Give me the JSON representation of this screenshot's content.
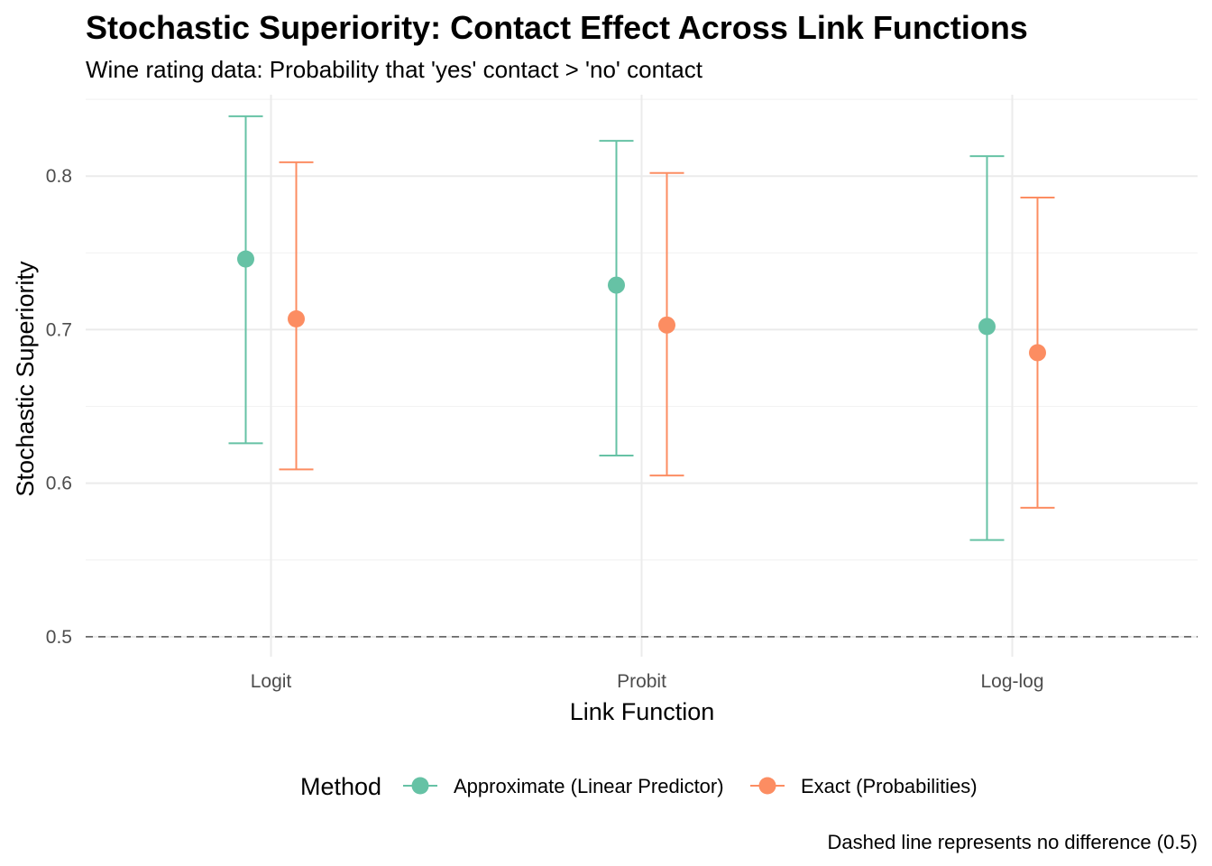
{
  "chart_data": {
    "type": "errorbar",
    "title": "Stochastic Superiority: Contact Effect Across Link Functions",
    "subtitle": "Wine rating data: Probability that 'yes' contact > 'no' contact",
    "xlabel": "Link Function",
    "ylabel": "Stochastic Superiority",
    "categories": [
      "Logit",
      "Probit",
      "Log-log"
    ],
    "ylim": [
      0.487,
      0.853
    ],
    "y_ticks": [
      0.5,
      0.6,
      0.7,
      0.8
    ],
    "y_tick_labels": [
      "0.5",
      "0.6",
      "0.7",
      "0.8"
    ],
    "grid": true,
    "reference_line": {
      "y": 0.5,
      "style": "dashed"
    },
    "legend": {
      "title": "Method",
      "position": "bottom"
    },
    "series": [
      {
        "name": "Approximate (Linear Predictor)",
        "color": "#66c2a5",
        "values": [
          0.746,
          0.729,
          0.702
        ],
        "lower": [
          0.626,
          0.618,
          0.563
        ],
        "upper": [
          0.839,
          0.823,
          0.813
        ]
      },
      {
        "name": "Exact (Probabilities)",
        "color": "#fc8d62",
        "values": [
          0.707,
          0.703,
          0.685
        ],
        "lower": [
          0.609,
          0.605,
          0.584
        ],
        "upper": [
          0.809,
          0.802,
          0.786
        ]
      }
    ],
    "caption": "Dashed line represents no difference (0.5)"
  }
}
